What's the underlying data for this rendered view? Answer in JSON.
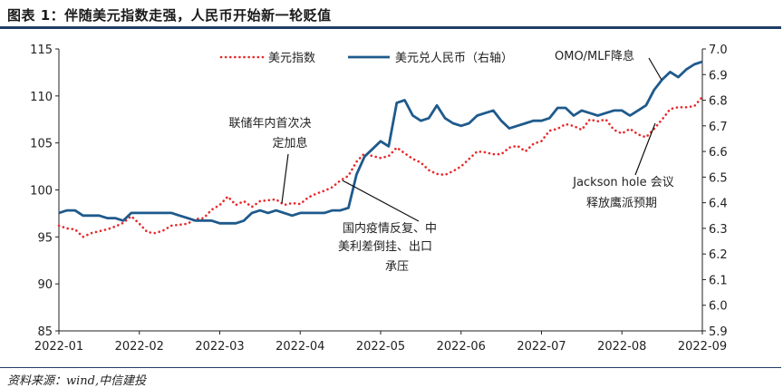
{
  "title": "图表 1：伴随美元指数走强，人民币开始新一轮贬值",
  "source": "资料来源：wind,中信建投",
  "colors": {
    "usd_index": "#e8292b",
    "usdcny": "#1f5a8c",
    "axis": "#222222",
    "rule": "#1f3e66"
  },
  "chart_data": {
    "type": "line",
    "x_ticks": [
      "2022-01",
      "2022-02",
      "2022-03",
      "2022-04",
      "2022-05",
      "2022-06",
      "2022-07",
      "2022-08",
      "2022-09"
    ],
    "left_axis": {
      "ylim": [
        85,
        115
      ],
      "ticks": [
        "85",
        "90",
        "95",
        "100",
        "105",
        "110",
        "115"
      ]
    },
    "right_axis": {
      "ylim": [
        5.9,
        7.0
      ],
      "ticks": [
        "5.9",
        "6.0",
        "6.1",
        "6.2",
        "6.3",
        "6.4",
        "6.5",
        "6.6",
        "6.7",
        "6.8",
        "6.9",
        "7.0"
      ]
    },
    "legend": {
      "placement": "top"
    },
    "series": [
      {
        "name": "美元指数",
        "axis": "left",
        "style": "dotted",
        "x": [
          0,
          0.1,
          0.2,
          0.3,
          0.4,
          0.5,
          0.6,
          0.7,
          0.8,
          0.9,
          1.0,
          1.1,
          1.2,
          1.3,
          1.4,
          1.5,
          1.6,
          1.7,
          1.8,
          1.9,
          2.0,
          2.1,
          2.2,
          2.3,
          2.4,
          2.5,
          2.6,
          2.7,
          2.8,
          2.9,
          3.0,
          3.1,
          3.2,
          3.3,
          3.4,
          3.5,
          3.6,
          3.7,
          3.8,
          3.9,
          4.0,
          4.1,
          4.2,
          4.3,
          4.4,
          4.5,
          4.6,
          4.7,
          4.8,
          4.9,
          5.0,
          5.1,
          5.2,
          5.3,
          5.4,
          5.5,
          5.6,
          5.7,
          5.8,
          5.9,
          6.0,
          6.1,
          6.2,
          6.3,
          6.4,
          6.5,
          6.6,
          6.7,
          6.8,
          6.9,
          7.0,
          7.1,
          7.2,
          7.3,
          7.4,
          7.5,
          7.6,
          7.7,
          7.8,
          7.9,
          8.0
        ],
        "values": [
          96.2,
          95.9,
          95.8,
          95.0,
          95.4,
          95.6,
          95.8,
          96.1,
          96.5,
          97.2,
          96.4,
          95.5,
          95.4,
          95.7,
          96.2,
          96.3,
          96.4,
          96.9,
          97.0,
          97.9,
          98.4,
          99.3,
          98.4,
          98.8,
          98.2,
          98.8,
          98.9,
          99.0,
          98.4,
          98.6,
          98.5,
          99.2,
          99.6,
          99.9,
          100.3,
          101.0,
          101.5,
          103.0,
          103.9,
          103.6,
          103.4,
          103.6,
          104.5,
          103.9,
          103.3,
          102.9,
          102.1,
          101.7,
          101.6,
          102.0,
          102.5,
          103.3,
          104.1,
          104.0,
          103.8,
          103.8,
          104.5,
          104.7,
          104.1,
          104.9,
          105.2,
          106.3,
          106.5,
          107.0,
          106.8,
          106.4,
          107.5,
          107.3,
          107.5,
          106.4,
          106.0,
          106.5,
          105.9,
          105.6,
          106.5,
          107.5,
          108.6,
          108.8,
          108.8,
          108.9,
          109.9
        ]
      },
      {
        "name": "美元兑人民币（右轴）",
        "axis": "right",
        "style": "solid",
        "x": [
          0,
          0.1,
          0.2,
          0.3,
          0.4,
          0.5,
          0.6,
          0.7,
          0.8,
          0.9,
          1.0,
          1.1,
          1.2,
          1.3,
          1.4,
          1.5,
          1.6,
          1.7,
          1.8,
          1.9,
          2.0,
          2.1,
          2.2,
          2.3,
          2.4,
          2.5,
          2.6,
          2.7,
          2.8,
          2.9,
          3.0,
          3.1,
          3.2,
          3.3,
          3.4,
          3.5,
          3.6,
          3.7,
          3.8,
          3.9,
          4.0,
          4.1,
          4.2,
          4.3,
          4.4,
          4.5,
          4.6,
          4.7,
          4.8,
          4.9,
          5.0,
          5.1,
          5.2,
          5.3,
          5.4,
          5.5,
          5.6,
          5.7,
          5.8,
          5.9,
          6.0,
          6.1,
          6.2,
          6.3,
          6.4,
          6.5,
          6.6,
          6.7,
          6.8,
          6.9,
          7.0,
          7.1,
          7.2,
          7.3,
          7.4,
          7.5,
          7.6,
          7.7,
          7.8,
          7.9,
          8.0
        ],
        "values": [
          6.36,
          6.37,
          6.37,
          6.35,
          6.35,
          6.35,
          6.34,
          6.34,
          6.33,
          6.36,
          6.36,
          6.36,
          6.36,
          6.36,
          6.36,
          6.35,
          6.34,
          6.33,
          6.33,
          6.33,
          6.32,
          6.32,
          6.32,
          6.33,
          6.36,
          6.37,
          6.36,
          6.37,
          6.36,
          6.35,
          6.36,
          6.36,
          6.36,
          6.36,
          6.37,
          6.37,
          6.38,
          6.51,
          6.58,
          6.61,
          6.64,
          6.62,
          6.79,
          6.8,
          6.74,
          6.72,
          6.73,
          6.78,
          6.73,
          6.71,
          6.7,
          6.71,
          6.74,
          6.75,
          6.76,
          6.72,
          6.69,
          6.7,
          6.71,
          6.72,
          6.72,
          6.73,
          6.77,
          6.77,
          6.74,
          6.76,
          6.75,
          6.74,
          6.75,
          6.76,
          6.76,
          6.74,
          6.76,
          6.78,
          6.84,
          6.88,
          6.91,
          6.89,
          6.92,
          6.94,
          6.95
        ]
      }
    ],
    "annotations": [
      {
        "lines": [
          "联储年内首次决",
          "定加息"
        ],
        "x": 3.2,
        "y_left": 98.6
      },
      {
        "lines": [
          "国内疫情反复、中",
          "美利差倒挂、出口",
          "承压"
        ],
        "x": 3.6,
        "y_left": 101.0
      },
      {
        "lines": [
          "OMO/MLF降息"
        ],
        "x": 7.55,
        "y_left": 108.6
      },
      {
        "lines": [
          "Jackson hole 会议",
          "释放鹰派预期"
        ],
        "x": 7.65,
        "y_left": 105.9
      }
    ]
  }
}
